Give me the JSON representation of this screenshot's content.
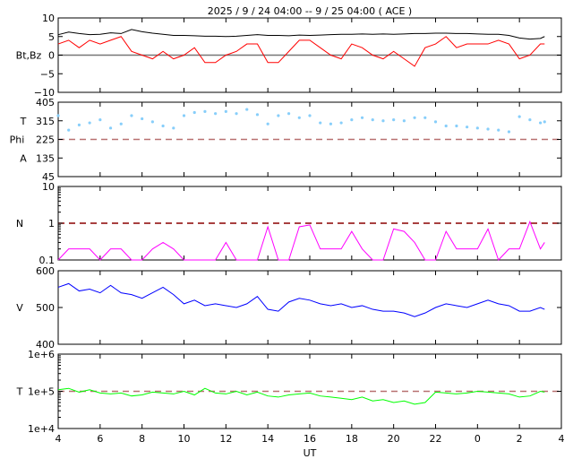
{
  "title": "2025 /  9 / 24   04:00 --  9 / 25   04:00 ( ACE )",
  "chart_data": [
    {
      "type": "line",
      "ylabel": "Bt,Bz",
      "ylim": [
        -10,
        10
      ],
      "yticks": [
        10,
        5,
        0,
        -5,
        -10
      ],
      "ytick_labels": [
        "10",
        "5",
        "0",
        "−5",
        "−10"
      ],
      "reference_line": {
        "y": 0,
        "color": "#777777",
        "style": "solid"
      },
      "x_hours": [
        4,
        4.5,
        5,
        5.5,
        6,
        6.5,
        7,
        7.5,
        8,
        8.5,
        9,
        9.5,
        10,
        10.5,
        11,
        11.5,
        12,
        12.5,
        13,
        13.5,
        14,
        14.5,
        15,
        15.5,
        16,
        16.5,
        17,
        17.5,
        18,
        18.5,
        19,
        19.5,
        20,
        20.5,
        21,
        21.5,
        22,
        22.5,
        23,
        23.5,
        24,
        24.5,
        25,
        25.5,
        26,
        26.5,
        27,
        27.2
      ],
      "series": [
        {
          "name": "Bt",
          "color": "#000000",
          "values": [
            5.5,
            6.2,
            5.8,
            5.5,
            5.6,
            6,
            5.8,
            6.9,
            6.3,
            5.9,
            5.6,
            5.3,
            5.3,
            5.2,
            5.1,
            5.1,
            5,
            5.1,
            5.3,
            5.5,
            5.3,
            5.3,
            5.2,
            5.4,
            5.3,
            5.4,
            5.5,
            5.6,
            5.6,
            5.7,
            5.6,
            5.7,
            5.6,
            5.7,
            5.8,
            5.8,
            5.9,
            5.9,
            5.8,
            5.8,
            5.7,
            5.6,
            5.6,
            5.3,
            4.6,
            4.3,
            4.5,
            5
          ]
        },
        {
          "name": "Bz",
          "color": "#ff0000",
          "values": [
            3,
            4,
            2,
            4,
            3,
            4,
            5,
            1,
            0,
            -1,
            1,
            -1,
            0,
            2,
            -2,
            -2,
            0,
            1,
            3,
            3,
            -2,
            -2,
            1,
            4,
            4,
            2,
            0,
            -1,
            3,
            2,
            0,
            -1,
            1,
            -1,
            -3,
            2,
            3,
            5,
            2,
            3,
            3,
            3,
            4,
            3,
            -1,
            0,
            3,
            3
          ]
        }
      ]
    },
    {
      "type": "scatter",
      "ylabel": "T Phi A",
      "ylabel_lines": [
        "T",
        "Phi",
        "A"
      ],
      "ylim": [
        45,
        405
      ],
      "yticks": [
        405,
        315,
        225,
        135,
        45
      ],
      "ytick_labels": [
        "405",
        "315",
        "225",
        "135",
        "45"
      ],
      "reference_line": {
        "y": 225,
        "color": "#b87070",
        "style": "dashed"
      },
      "x_hours": [
        4,
        4.5,
        5,
        5.5,
        6,
        6.5,
        7,
        7.5,
        8,
        8.5,
        9,
        9.5,
        10,
        10.5,
        11,
        11.5,
        12,
        12.5,
        13,
        13.5,
        14,
        14.5,
        15,
        15.5,
        16,
        16.5,
        17,
        17.5,
        18,
        18.5,
        19,
        19.5,
        20,
        20.5,
        21,
        21.5,
        22,
        22.5,
        23,
        23.5,
        24,
        24.5,
        25,
        25.5,
        26,
        26.5,
        27,
        27.2
      ],
      "series": [
        {
          "name": "Phi",
          "color": "#87cefa",
          "values": [
            340,
            270,
            295,
            305,
            320,
            280,
            300,
            340,
            325,
            310,
            290,
            280,
            340,
            355,
            360,
            350,
            360,
            350,
            370,
            345,
            300,
            340,
            350,
            330,
            340,
            305,
            300,
            305,
            320,
            330,
            320,
            315,
            320,
            315,
            330,
            330,
            310,
            290,
            290,
            285,
            280,
            275,
            270,
            262,
            335,
            320,
            305,
            310
          ]
        }
      ]
    },
    {
      "type": "line",
      "ylabel": "N",
      "yscale": "log",
      "ylim": [
        0.1,
        10
      ],
      "yticks": [
        10,
        1,
        0.1
      ],
      "ytick_labels": [
        "10",
        "1",
        "0.1"
      ],
      "reference_line": {
        "y": 1,
        "color": "#8b0000",
        "style": "dashed"
      },
      "x_hours": [
        4,
        4.5,
        5,
        5.5,
        6,
        6.5,
        7,
        7.5,
        8,
        8.5,
        9,
        9.5,
        10,
        10.5,
        11,
        11.5,
        12,
        12.5,
        13,
        13.5,
        14,
        14.5,
        15,
        15.5,
        16,
        16.5,
        17,
        17.5,
        18,
        18.5,
        19,
        19.5,
        20,
        20.5,
        21,
        21.5,
        22,
        22.5,
        23,
        23.5,
        24,
        24.5,
        25,
        25.5,
        26,
        26.5,
        27,
        27.2
      ],
      "series": [
        {
          "name": "N",
          "color": "#ff00ff",
          "values": [
            0.1,
            0.2,
            0.2,
            0.2,
            0.1,
            0.2,
            0.2,
            0.1,
            0.1,
            0.2,
            0.3,
            0.2,
            0.1,
            0.1,
            0.1,
            0.1,
            0.3,
            0.1,
            0.1,
            0.1,
            0.8,
            0.1,
            0.1,
            0.8,
            0.9,
            0.2,
            0.2,
            0.2,
            0.6,
            0.2,
            0.1,
            0.1,
            0.7,
            0.6,
            0.3,
            0.1,
            0.1,
            0.6,
            0.2,
            0.2,
            0.2,
            0.7,
            0.1,
            0.2,
            0.2,
            1.1,
            0.2,
            0.3
          ]
        }
      ]
    },
    {
      "type": "line",
      "ylabel": "V",
      "ylim": [
        400,
        600
      ],
      "yticks": [
        600,
        500,
        400
      ],
      "ytick_labels": [
        "600",
        "500",
        "400"
      ],
      "x_hours": [
        4,
        4.5,
        5,
        5.5,
        6,
        6.5,
        7,
        7.5,
        8,
        8.5,
        9,
        9.5,
        10,
        10.5,
        11,
        11.5,
        12,
        12.5,
        13,
        13.5,
        14,
        14.5,
        15,
        15.5,
        16,
        16.5,
        17,
        17.5,
        18,
        18.5,
        19,
        19.5,
        20,
        20.5,
        21,
        21.5,
        22,
        22.5,
        23,
        23.5,
        24,
        24.5,
        25,
        25.5,
        26,
        26.5,
        27,
        27.2
      ],
      "series": [
        {
          "name": "V",
          "color": "#0000ff",
          "values": [
            555,
            565,
            545,
            550,
            540,
            560,
            540,
            535,
            525,
            540,
            555,
            535,
            510,
            520,
            505,
            510,
            505,
            500,
            510,
            530,
            495,
            490,
            515,
            525,
            520,
            510,
            505,
            510,
            500,
            505,
            495,
            490,
            490,
            485,
            475,
            485,
            500,
            510,
            505,
            500,
            510,
            520,
            510,
            505,
            490,
            490,
            500,
            495
          ]
        }
      ]
    },
    {
      "type": "line",
      "ylabel": "T",
      "yscale": "log",
      "ylim": [
        10000,
        1000000
      ],
      "yticks": [
        1000000,
        100000,
        10000
      ],
      "ytick_labels": [
        "1e+6",
        "1e+5",
        "1e+4"
      ],
      "reference_line": {
        "y": 100000,
        "color": "#b87070",
        "style": "dashed"
      },
      "x_hours": [
        4,
        4.5,
        5,
        5.5,
        6,
        6.5,
        7,
        7.5,
        8,
        8.5,
        9,
        9.5,
        10,
        10.5,
        11,
        11.5,
        12,
        12.5,
        13,
        13.5,
        14,
        14.5,
        15,
        15.5,
        16,
        16.5,
        17,
        17.5,
        18,
        18.5,
        19,
        19.5,
        20,
        20.5,
        21,
        21.5,
        22,
        22.5,
        23,
        23.5,
        24,
        24.5,
        25,
        25.5,
        26,
        26.5,
        27,
        27.2
      ],
      "series": [
        {
          "name": "T",
          "color": "#00ff00",
          "values": [
            110000,
            120000,
            95000,
            110000,
            90000,
            85000,
            90000,
            75000,
            80000,
            95000,
            90000,
            85000,
            100000,
            80000,
            120000,
            90000,
            85000,
            100000,
            80000,
            95000,
            75000,
            70000,
            80000,
            85000,
            90000,
            75000,
            70000,
            65000,
            60000,
            70000,
            55000,
            60000,
            50000,
            55000,
            45000,
            50000,
            95000,
            90000,
            85000,
            90000,
            100000,
            95000,
            90000,
            85000,
            70000,
            75000,
            100000,
            95000
          ]
        }
      ]
    }
  ],
  "xaxis": {
    "label": "UT",
    "xlim_hours": [
      4,
      28
    ],
    "ticks_hours": [
      4,
      6,
      8,
      10,
      12,
      14,
      16,
      18,
      20,
      22,
      24,
      26,
      28
    ],
    "tick_labels": [
      "4",
      "6",
      "8",
      "10",
      "12",
      "14",
      "16",
      "18",
      "20",
      "22",
      "0",
      "2",
      "4"
    ]
  }
}
